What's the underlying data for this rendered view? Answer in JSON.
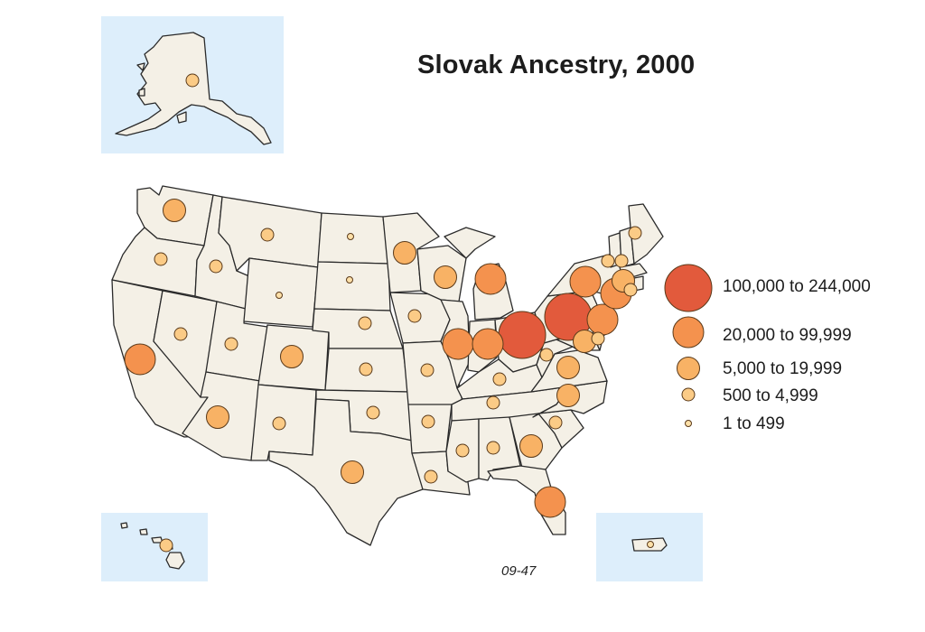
{
  "title": "Slovak Ancestry, 2000",
  "map_code": "09-47",
  "legend": [
    {
      "label": "100,000 to 244,000",
      "class": 5,
      "color": "#e25a3c"
    },
    {
      "label": "20,000 to 99,999",
      "class": 4,
      "color": "#f4924e"
    },
    {
      "label": "5,000 to 19,999",
      "class": 3,
      "color": "#f8b265"
    },
    {
      "label": "500 to 4,999",
      "class": 2,
      "color": "#fbcb86"
    },
    {
      "label": "1 to 499",
      "class": 1,
      "color": "#fde0a8"
    }
  ],
  "bubbles": [
    {
      "region": "Alaska",
      "class": 2
    },
    {
      "region": "Washington",
      "class": 3
    },
    {
      "region": "Oregon",
      "class": 2
    },
    {
      "region": "California",
      "class": 4
    },
    {
      "region": "Idaho",
      "class": 2
    },
    {
      "region": "Nevada",
      "class": 2
    },
    {
      "region": "Utah",
      "class": 2
    },
    {
      "region": "Arizona",
      "class": 3
    },
    {
      "region": "Montana",
      "class": 2
    },
    {
      "region": "Wyoming",
      "class": 1
    },
    {
      "region": "Colorado",
      "class": 3
    },
    {
      "region": "New Mexico",
      "class": 2
    },
    {
      "region": "North Dakota",
      "class": 1
    },
    {
      "region": "South Dakota",
      "class": 1
    },
    {
      "region": "Nebraska",
      "class": 2
    },
    {
      "region": "Kansas",
      "class": 2
    },
    {
      "region": "Oklahoma",
      "class": 2
    },
    {
      "region": "Texas",
      "class": 3
    },
    {
      "region": "Minnesota",
      "class": 3
    },
    {
      "region": "Iowa",
      "class": 2
    },
    {
      "region": "Missouri",
      "class": 2
    },
    {
      "region": "Arkansas",
      "class": 2
    },
    {
      "region": "Louisiana",
      "class": 2
    },
    {
      "region": "Wisconsin",
      "class": 3
    },
    {
      "region": "Illinois",
      "class": 4
    },
    {
      "region": "Michigan",
      "class": 4
    },
    {
      "region": "Indiana",
      "class": 4
    },
    {
      "region": "Ohio",
      "class": 5
    },
    {
      "region": "Kentucky",
      "class": 2
    },
    {
      "region": "Tennessee",
      "class": 2
    },
    {
      "region": "Mississippi",
      "class": 2
    },
    {
      "region": "Alabama",
      "class": 2
    },
    {
      "region": "Georgia",
      "class": 3
    },
    {
      "region": "Florida",
      "class": 4
    },
    {
      "region": "South Carolina",
      "class": 2
    },
    {
      "region": "North Carolina",
      "class": 3
    },
    {
      "region": "Virginia",
      "class": 3
    },
    {
      "region": "West Virginia",
      "class": 2
    },
    {
      "region": "Pennsylvania",
      "class": 5
    },
    {
      "region": "New York",
      "class": 4
    },
    {
      "region": "New Jersey",
      "class": 4
    },
    {
      "region": "Maryland",
      "class": 3
    },
    {
      "region": "Delaware",
      "class": 2
    },
    {
      "region": "Connecticut",
      "class": 4
    },
    {
      "region": "Rhode Island",
      "class": 2
    },
    {
      "region": "Massachusetts",
      "class": 3
    },
    {
      "region": "Vermont",
      "class": 2
    },
    {
      "region": "New Hampshire",
      "class": 2
    },
    {
      "region": "Maine",
      "class": 2
    },
    {
      "region": "Hawaii",
      "class": 2
    },
    {
      "region": "Puerto Rico",
      "class": 1
    }
  ]
}
